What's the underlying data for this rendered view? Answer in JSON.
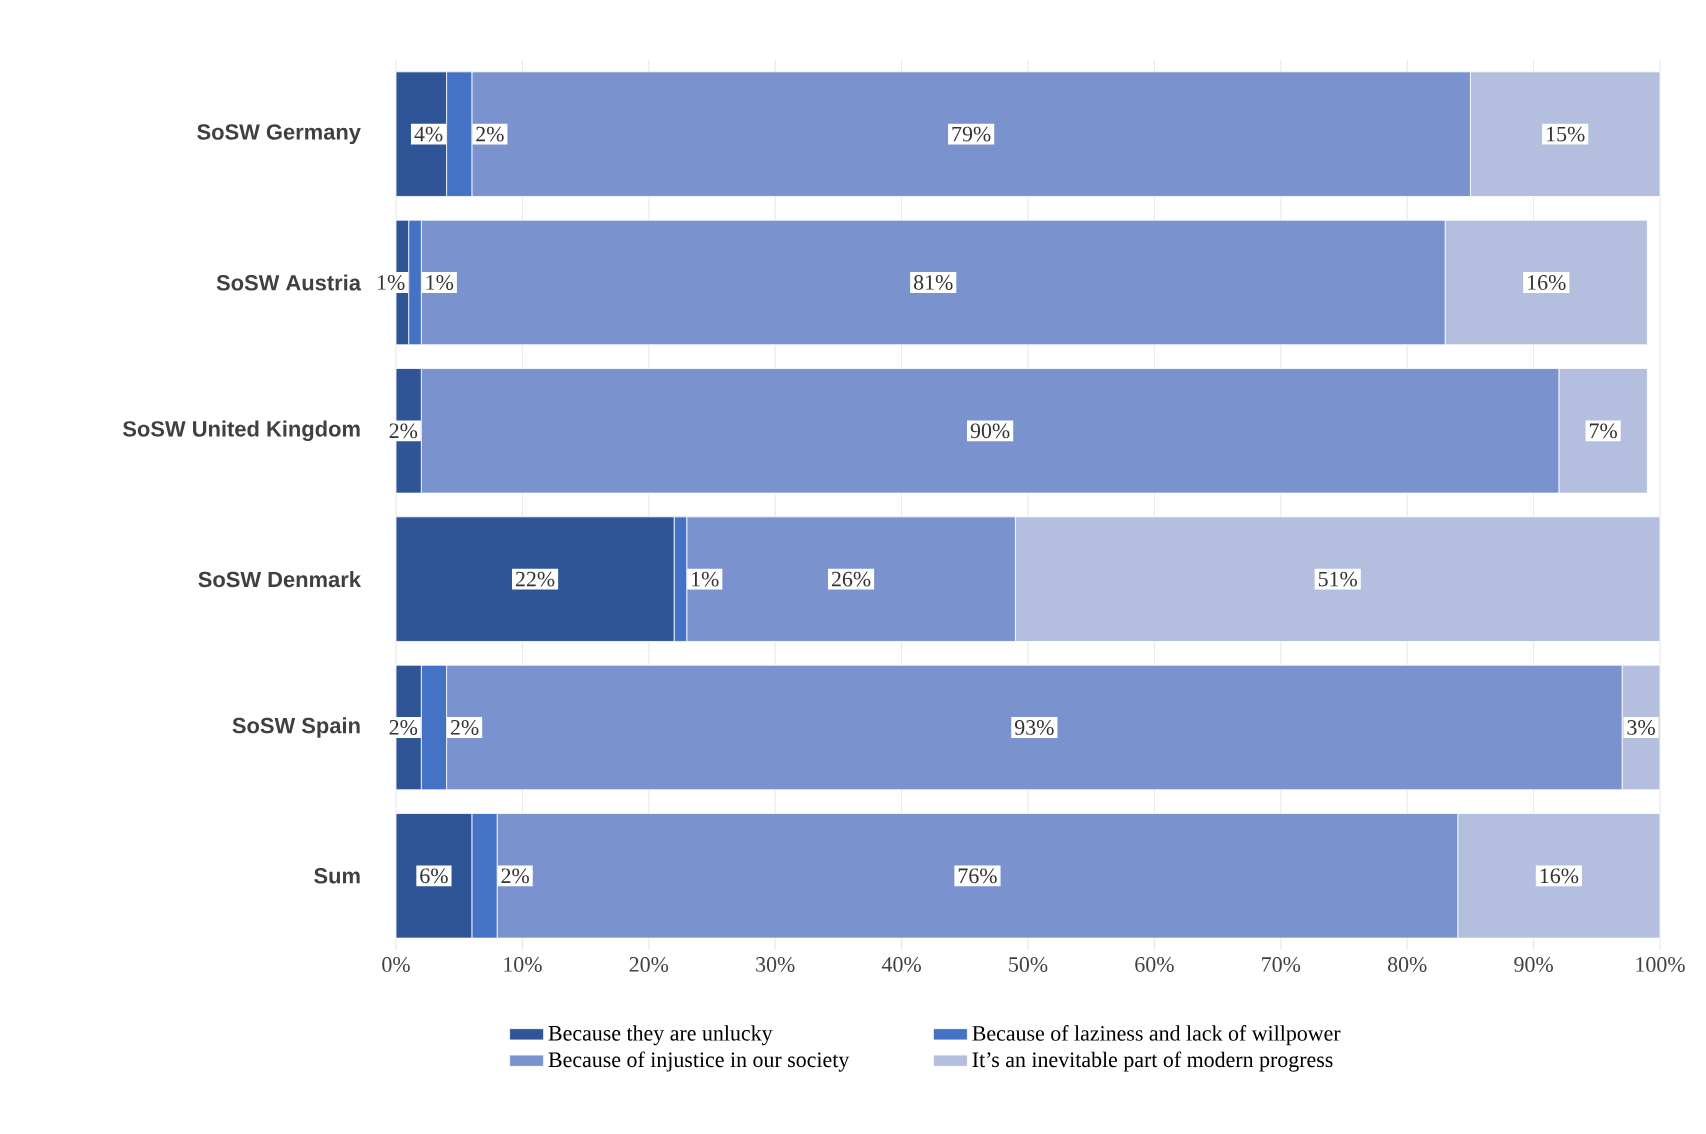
{
  "chart_data": {
    "type": "bar",
    "orientation": "horizontal",
    "stacked": true,
    "categories": [
      "SoSW Germany",
      "SoSW Austria",
      "SoSW United Kingdom",
      "SoSW Denmark",
      "SoSW Spain",
      "Sum"
    ],
    "series": [
      {
        "name": "Because they are unlucky",
        "color": "#2f5597",
        "values": [
          4,
          1,
          2,
          22,
          2,
          6
        ],
        "value_labels": [
          "4%",
          "1%",
          "2%",
          "22%",
          "2%",
          "6%"
        ]
      },
      {
        "name": "Because of laziness and lack of willpower",
        "color": "#4472c4",
        "values": [
          2,
          1,
          0,
          1,
          2,
          2
        ],
        "value_labels": [
          "2%",
          "1%",
          null,
          "1%",
          "2%",
          "2%"
        ]
      },
      {
        "name": "Because of injustice in our society",
        "color": "#7a93cf",
        "values": [
          79,
          81,
          90,
          26,
          93,
          76
        ],
        "value_labels": [
          "79%",
          "81%",
          "90%",
          "26%",
          "93%",
          "76%"
        ]
      },
      {
        "name": "It’s an inevitable part of modern progress",
        "color": "#b4bfdf",
        "values": [
          15,
          16,
          7,
          51,
          3,
          16
        ],
        "value_labels": [
          "15%",
          "16%",
          "7%",
          "51%",
          "3%",
          "16%"
        ]
      }
    ],
    "xlim": [
      0,
      100
    ],
    "xticks": [
      {
        "value": 0,
        "label": "0%"
      },
      {
        "value": 10,
        "label": "10%"
      },
      {
        "value": 20,
        "label": "20%"
      },
      {
        "value": 30,
        "label": "30%"
      },
      {
        "value": 40,
        "label": "40%"
      },
      {
        "value": 50,
        "label": "50%"
      },
      {
        "value": 60,
        "label": "60%"
      },
      {
        "value": 70,
        "label": "70%"
      },
      {
        "value": 80,
        "label": "80%"
      },
      {
        "value": 90,
        "label": "90%"
      },
      {
        "value": 100,
        "label": "100%"
      }
    ],
    "grid": "x",
    "legend": "bottom"
  }
}
